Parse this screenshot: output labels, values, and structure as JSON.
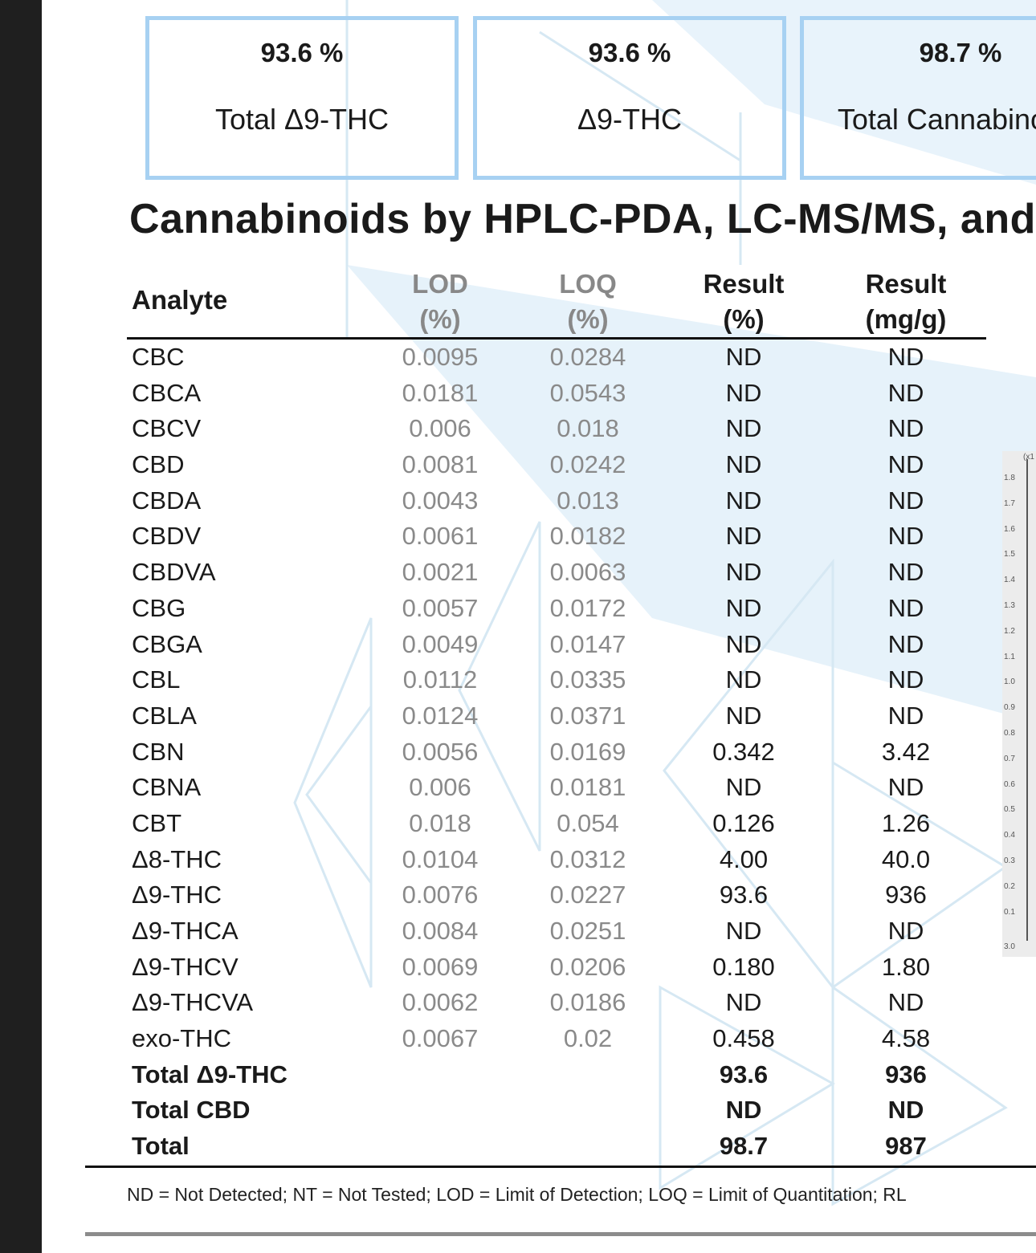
{
  "cards": [
    {
      "value": "93.6 %",
      "label": "Total Δ9-THC"
    },
    {
      "value": "93.6 %",
      "label": "Δ9-THC"
    },
    {
      "value": "98.7 %",
      "label": "Total Cannabinoids"
    }
  ],
  "heading": "Cannabinoids by HPLC-PDA, LC-MS/MS, and",
  "table": {
    "headers": {
      "analyte": "Analyte",
      "lod_line1": "LOD",
      "lod_line2": "(%)",
      "loq_line1": "LOQ",
      "loq_line2": "(%)",
      "result_pct_line1": "Result",
      "result_pct_line2": "(%)",
      "result_mg_line1": "Result",
      "result_mg_line2": "(mg/g)"
    },
    "rows": [
      [
        "CBC",
        "0.0095",
        "0.0284",
        "ND",
        "ND"
      ],
      [
        "CBCA",
        "0.0181",
        "0.0543",
        "ND",
        "ND"
      ],
      [
        "CBCV",
        "0.006",
        "0.018",
        "ND",
        "ND"
      ],
      [
        "CBD",
        "0.0081",
        "0.0242",
        "ND",
        "ND"
      ],
      [
        "CBDA",
        "0.0043",
        "0.013",
        "ND",
        "ND"
      ],
      [
        "CBDV",
        "0.0061",
        "0.0182",
        "ND",
        "ND"
      ],
      [
        "CBDVA",
        "0.0021",
        "0.0063",
        "ND",
        "ND"
      ],
      [
        "CBG",
        "0.0057",
        "0.0172",
        "ND",
        "ND"
      ],
      [
        "CBGA",
        "0.0049",
        "0.0147",
        "ND",
        "ND"
      ],
      [
        "CBL",
        "0.0112",
        "0.0335",
        "ND",
        "ND"
      ],
      [
        "CBLA",
        "0.0124",
        "0.0371",
        "ND",
        "ND"
      ],
      [
        "CBN",
        "0.0056",
        "0.0169",
        "0.342",
        "3.42"
      ],
      [
        "CBNA",
        "0.006",
        "0.0181",
        "ND",
        "ND"
      ],
      [
        "CBT",
        "0.018",
        "0.054",
        "0.126",
        "1.26"
      ],
      [
        "Δ8-THC",
        "0.0104",
        "0.0312",
        "4.00",
        "40.0"
      ],
      [
        "Δ9-THC",
        "0.0076",
        "0.0227",
        "93.6",
        "936"
      ],
      [
        "Δ9-THCA",
        "0.0084",
        "0.0251",
        "ND",
        "ND"
      ],
      [
        "Δ9-THCV",
        "0.0069",
        "0.0206",
        "0.180",
        "1.80"
      ],
      [
        "Δ9-THCVA",
        "0.0062",
        "0.0186",
        "ND",
        "ND"
      ],
      [
        "exo-THC",
        "0.0067",
        "0.02",
        "0.458",
        "4.58"
      ]
    ],
    "totals": [
      [
        "Total Δ9-THC",
        "93.6",
        "936"
      ],
      [
        "Total CBD",
        "ND",
        "ND"
      ],
      [
        "Total",
        "98.7",
        "987"
      ]
    ]
  },
  "footnote": "ND = Not Detected; NT = Not Tested; LOD = Limit of Detection; LOQ = Limit of Quantitation; RL",
  "chart_ticks": [
    "(x1",
    "1.8",
    "1.7",
    "1.6",
    "1.5",
    "1.4",
    "1.3",
    "1.2",
    "1.1",
    "1.0",
    "0.9",
    "0.8",
    "0.7",
    "0.6",
    "0.5",
    "0.4",
    "0.3",
    "0.2",
    "0.1",
    "3.0"
  ]
}
